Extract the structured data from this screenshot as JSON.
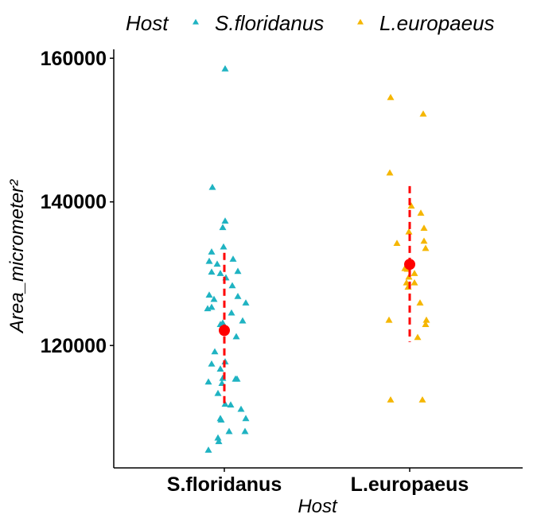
{
  "chart_data": {
    "type": "scatter",
    "title": "",
    "xlabel": "Host",
    "ylabel": "Area_micrometer²",
    "categories": [
      "S.floridanus",
      "L.europaeus"
    ],
    "ylim": [
      104000,
      162000
    ],
    "yticks": [
      "120000",
      "140000",
      "160000"
    ],
    "grid": false,
    "legend": {
      "title": "Host",
      "position": "top",
      "entries": [
        "S.floridanus",
        "L.europaeus"
      ]
    },
    "colors": {
      "S.floridanus": "#1fb3c2",
      "L.europaeus": "#f5b600",
      "summary": "#ff0000"
    },
    "series": [
      {
        "name": "S.floridanus",
        "category": "S.floridanus",
        "points": [
          {
            "jitter": 0.01,
            "y": 158500
          },
          {
            "jitter": -0.15,
            "y": 142000
          },
          {
            "jitter": 0.01,
            "y": 137300
          },
          {
            "jitter": -0.02,
            "y": 136400
          },
          {
            "jitter": -0.01,
            "y": 133700
          },
          {
            "jitter": -0.16,
            "y": 133000
          },
          {
            "jitter": 0.11,
            "y": 132000
          },
          {
            "jitter": -0.19,
            "y": 131700
          },
          {
            "jitter": -0.09,
            "y": 131300
          },
          {
            "jitter": 0.17,
            "y": 130300
          },
          {
            "jitter": -0.16,
            "y": 130200
          },
          {
            "jitter": -0.05,
            "y": 130000
          },
          {
            "jitter": 0.02,
            "y": 129400
          },
          {
            "jitter": 0.1,
            "y": 128300
          },
          {
            "jitter": -0.19,
            "y": 127000
          },
          {
            "jitter": 0.17,
            "y": 126800
          },
          {
            "jitter": -0.13,
            "y": 126400
          },
          {
            "jitter": 0.27,
            "y": 125900
          },
          {
            "jitter": -0.16,
            "y": 125300
          },
          {
            "jitter": -0.21,
            "y": 125100
          },
          {
            "jitter": 0.09,
            "y": 124500
          },
          {
            "jitter": 0.23,
            "y": 123400
          },
          {
            "jitter": -0.02,
            "y": 123100
          },
          {
            "jitter": -0.05,
            "y": 122900
          },
          {
            "jitter": 0.15,
            "y": 121200
          },
          {
            "jitter": -0.12,
            "y": 119100
          },
          {
            "jitter": 0.01,
            "y": 117700
          },
          {
            "jitter": -0.16,
            "y": 117400
          },
          {
            "jitter": -0.05,
            "y": 116700
          },
          {
            "jitter": -0.02,
            "y": 115400
          },
          {
            "jitter": 0.14,
            "y": 115300
          },
          {
            "jitter": 0.16,
            "y": 115300
          },
          {
            "jitter": -0.2,
            "y": 114900
          },
          {
            "jitter": -0.03,
            "y": 114700
          },
          {
            "jitter": -0.08,
            "y": 113300
          },
          {
            "jitter": 0.01,
            "y": 111800
          },
          {
            "jitter": 0.08,
            "y": 111700
          },
          {
            "jitter": 0.21,
            "y": 111100
          },
          {
            "jitter": -0.05,
            "y": 109800
          },
          {
            "jitter": 0.27,
            "y": 109800
          },
          {
            "jitter": -0.04,
            "y": 109600
          },
          {
            "jitter": 0.06,
            "y": 108000
          },
          {
            "jitter": 0.26,
            "y": 108000
          },
          {
            "jitter": -0.08,
            "y": 107100
          },
          {
            "jitter": -0.07,
            "y": 106600
          },
          {
            "jitter": -0.2,
            "y": 105400
          }
        ]
      },
      {
        "name": "L.europaeus",
        "category": "L.europaeus",
        "points": [
          {
            "jitter": -0.24,
            "y": 154500
          },
          {
            "jitter": 0.17,
            "y": 152200
          },
          {
            "jitter": -0.25,
            "y": 144000
          },
          {
            "jitter": 0.02,
            "y": 139400
          },
          {
            "jitter": 0.14,
            "y": 138400
          },
          {
            "jitter": 0.18,
            "y": 136300
          },
          {
            "jitter": -0.01,
            "y": 135800
          },
          {
            "jitter": 0.18,
            "y": 134500
          },
          {
            "jitter": -0.16,
            "y": 134200
          },
          {
            "jitter": 0.2,
            "y": 133500
          },
          {
            "jitter": -0.06,
            "y": 130700
          },
          {
            "jitter": -0.03,
            "y": 130600
          },
          {
            "jitter": 0.06,
            "y": 130000
          },
          {
            "jitter": -0.01,
            "y": 129500
          },
          {
            "jitter": -0.04,
            "y": 128700
          },
          {
            "jitter": 0.06,
            "y": 128700
          },
          {
            "jitter": -0.02,
            "y": 128100
          },
          {
            "jitter": 0.13,
            "y": 125900
          },
          {
            "jitter": -0.26,
            "y": 123500
          },
          {
            "jitter": 0.21,
            "y": 123500
          },
          {
            "jitter": 0.2,
            "y": 122900
          },
          {
            "jitter": 0.1,
            "y": 121100
          },
          {
            "jitter": -0.24,
            "y": 112400
          },
          {
            "jitter": 0.16,
            "y": 112400
          }
        ]
      }
    ],
    "summary": [
      {
        "category": "S.floridanus",
        "mean": 122100,
        "lower": 111400,
        "upper": 132900
      },
      {
        "category": "L.europaeus",
        "mean": 131300,
        "lower": 120500,
        "upper": 142200
      }
    ]
  }
}
